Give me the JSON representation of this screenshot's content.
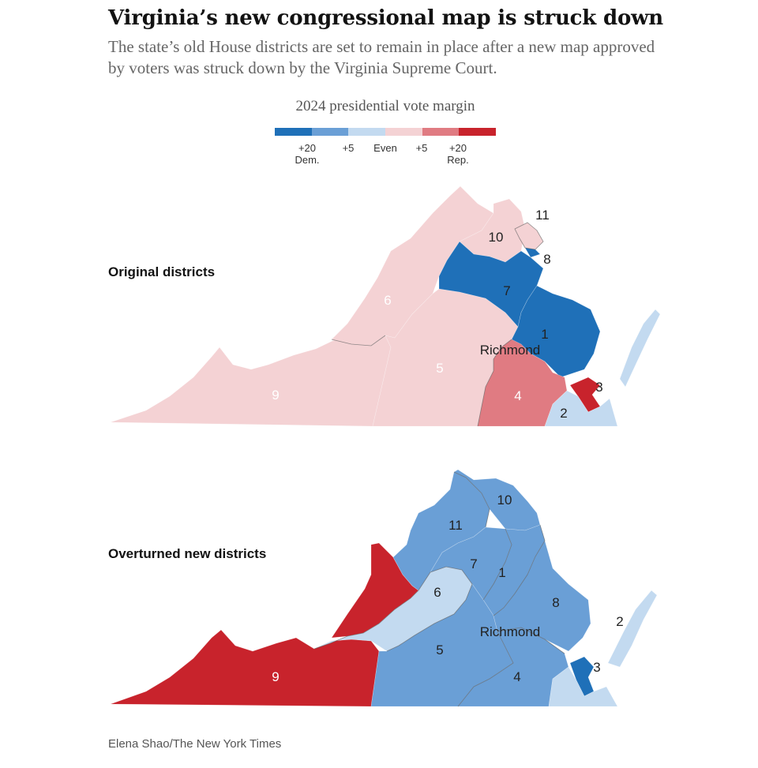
{
  "title": "Virginia’s new congressional map is struck down",
  "subtitle": "The state’s old House districts are set to remain in place after a new map approved by voters was struck down by the Virginia Supreme Court.",
  "legend": {
    "title": "2024 presidential vote margin",
    "colors": [
      "#1f70b8",
      "#6a9fd6",
      "#c3daf0",
      "#f4d2d4",
      "#e07b82",
      "#c8232c"
    ],
    "ticks": [
      {
        "label": "+20",
        "sub": "Dem."
      },
      {
        "label": "+5",
        "sub": ""
      },
      {
        "label": "Even",
        "sub": ""
      },
      {
        "label": "+5",
        "sub": ""
      },
      {
        "label": "+20",
        "sub": "Rep."
      }
    ]
  },
  "maps": [
    {
      "label": "Original districts",
      "city": "Richmond",
      "districts": [
        {
          "number": "1",
          "color": "#f4d2d4"
        },
        {
          "number": "2",
          "color": "#f4d2d4"
        },
        {
          "number": "3",
          "color": "#1f70b8"
        },
        {
          "number": "4",
          "color": "#1f70b8"
        },
        {
          "number": "5",
          "color": "#e07b82"
        },
        {
          "number": "6",
          "color": "#c8232c"
        },
        {
          "number": "7",
          "color": "#c3daf0"
        },
        {
          "number": "8",
          "color": "#1f70b8"
        },
        {
          "number": "9",
          "color": "#c8232c"
        },
        {
          "number": "10",
          "color": "#6a9fd6"
        },
        {
          "number": "11",
          "color": "#1f70b8"
        }
      ]
    },
    {
      "label": "Overturned new districts",
      "city": "Richmond",
      "districts": [
        {
          "number": "1",
          "color": "#6a9fd6"
        },
        {
          "number": "2",
          "color": "#c3daf0"
        },
        {
          "number": "3",
          "color": "#1f70b8"
        },
        {
          "number": "4",
          "color": "#6a9fd6"
        },
        {
          "number": "5",
          "color": "#6a9fd6"
        },
        {
          "number": "6",
          "color": "#c3daf0"
        },
        {
          "number": "7",
          "color": "#6a9fd6"
        },
        {
          "number": "8",
          "color": "#6a9fd6"
        },
        {
          "number": "9",
          "color": "#c8232c"
        },
        {
          "number": "10",
          "color": "#6a9fd6"
        },
        {
          "number": "11",
          "color": "#6a9fd6"
        }
      ]
    }
  ],
  "credit": "Elena Shao/The New York Times"
}
